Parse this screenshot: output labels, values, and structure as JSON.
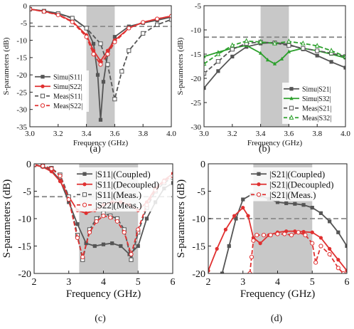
{
  "chart_data": [
    {
      "panel": "(a)",
      "type": "line",
      "xlabel": "Frequency (GHz)",
      "ylabel": "S-parameters (dB)",
      "xlim": [
        3.0,
        4.0
      ],
      "ylim": [
        -35,
        0
      ],
      "xticks": [
        3.0,
        3.2,
        3.4,
        3.6,
        3.8,
        4.0
      ],
      "xtick_labels": [
        "3.0",
        "3.2",
        "3.4",
        "3.6",
        "3.8",
        "4.0"
      ],
      "yticks": [
        0,
        -5,
        -10,
        -15,
        -20,
        -25,
        -30,
        -35
      ],
      "ytick_labels": [
        "0",
        "-5",
        "-10",
        "-15",
        "-20",
        "-25",
        "-30",
        "-35"
      ],
      "shaded_band": [
        3.4,
        3.6
      ],
      "ref_line": -6,
      "legend_position": "lower-left",
      "series": [
        {
          "name": "Simu|S11|",
          "color": "#555555",
          "style": "solid",
          "marker": "square",
          "x": [
            3.0,
            3.1,
            3.2,
            3.3,
            3.4,
            3.45,
            3.48,
            3.5,
            3.52,
            3.55,
            3.6,
            3.7,
            3.8,
            3.9,
            4.0
          ],
          "y": [
            -1.0,
            -1.5,
            -2.2,
            -3.5,
            -6.5,
            -11,
            -20,
            -33,
            -22,
            -14,
            -9,
            -6,
            -5,
            -4.2,
            -3.3
          ]
        },
        {
          "name": "Simu|S22|",
          "color": "#e03030",
          "style": "solid",
          "marker": "circle",
          "x": [
            3.0,
            3.1,
            3.2,
            3.3,
            3.4,
            3.45,
            3.5,
            3.55,
            3.6,
            3.7,
            3.8,
            3.9,
            4.0
          ],
          "y": [
            -1.0,
            -1.6,
            -2.6,
            -4.5,
            -8.5,
            -13,
            -16,
            -13,
            -10,
            -6.5,
            -4.8,
            -3.8,
            -3.0
          ]
        },
        {
          "name": "Meas|S11|",
          "color": "#555555",
          "style": "dashed",
          "marker": "open-square",
          "x": [
            3.0,
            3.1,
            3.2,
            3.3,
            3.4,
            3.5,
            3.55,
            3.6,
            3.65,
            3.7,
            3.8,
            3.9,
            4.0
          ],
          "y": [
            -1.0,
            -1.6,
            -2.3,
            -3.6,
            -6.5,
            -11,
            -17,
            -27,
            -19,
            -13,
            -8,
            -5.5,
            -4.0
          ]
        },
        {
          "name": "Meas|S22|",
          "color": "#e03030",
          "style": "dashed",
          "marker": "open-circle",
          "x": [
            3.0,
            3.1,
            3.2,
            3.3,
            3.4,
            3.45,
            3.5,
            3.55,
            3.6,
            3.7,
            3.8,
            3.9,
            4.0
          ],
          "y": [
            -1.0,
            -1.7,
            -2.7,
            -4.7,
            -9,
            -14,
            -17,
            -14,
            -10.5,
            -6.5,
            -4.8,
            -3.8,
            -3.0
          ]
        }
      ]
    },
    {
      "panel": "(b)",
      "type": "line",
      "xlabel": "Frequency (GHz)",
      "ylabel": "S-parameters (dB)",
      "xlim": [
        3.0,
        4.0
      ],
      "ylim": [
        -30,
        -5
      ],
      "xticks": [
        3.0,
        3.2,
        3.4,
        3.6,
        3.8,
        4.0
      ],
      "xtick_labels": [
        "3.0",
        "3.2",
        "3.4",
        "3.6",
        "3.8",
        "4.0"
      ],
      "yticks": [
        -5,
        -10,
        -15,
        -20,
        -25,
        -30
      ],
      "ytick_labels": [
        "-5",
        "-10",
        "-15",
        "-20",
        "-25",
        "-30"
      ],
      "shaded_band": [
        3.4,
        3.6
      ],
      "ref_line": -11.5,
      "legend_position": "lower-right",
      "series": [
        {
          "name": "Simu|S21|",
          "color": "#555555",
          "style": "solid",
          "marker": "square",
          "x": [
            3.0,
            3.1,
            3.2,
            3.3,
            3.4,
            3.5,
            3.6,
            3.7,
            3.8,
            3.9,
            4.0
          ],
          "y": [
            -22,
            -18.5,
            -15.5,
            -13.5,
            -12.8,
            -12.6,
            -13.0,
            -14.0,
            -15.3,
            -16.6,
            -17.8
          ]
        },
        {
          "name": "Simu|S32|",
          "color": "#2ca02c",
          "style": "solid",
          "marker": "triangle",
          "x": [
            3.0,
            3.1,
            3.2,
            3.3,
            3.4,
            3.45,
            3.5,
            3.55,
            3.6,
            3.7,
            3.8,
            3.9,
            4.0
          ],
          "y": [
            -15.5,
            -14.6,
            -13.8,
            -13.2,
            -14.8,
            -16.2,
            -17.0,
            -16.0,
            -14.5,
            -13.8,
            -14.3,
            -15.0,
            -15.8
          ]
        },
        {
          "name": "Meas|S21|",
          "color": "#555555",
          "style": "dashed",
          "marker": "open-square",
          "x": [
            3.0,
            3.1,
            3.2,
            3.3,
            3.4,
            3.5,
            3.6,
            3.7,
            3.8,
            3.9,
            4.0
          ],
          "y": [
            -19,
            -16.5,
            -14,
            -12.8,
            -12.5,
            -12.7,
            -13.2,
            -13.8,
            -14.3,
            -14.8,
            -15.5
          ]
        },
        {
          "name": "Meas|S32|",
          "color": "#2ca02c",
          "style": "dashed",
          "marker": "open-triangle",
          "x": [
            3.0,
            3.1,
            3.2,
            3.3,
            3.4,
            3.5,
            3.6,
            3.7,
            3.8,
            3.9,
            4.0
          ],
          "y": [
            -17,
            -15,
            -13.2,
            -12.3,
            -12.5,
            -12.8,
            -12.4,
            -12.8,
            -13.3,
            -14.3,
            -15.5
          ]
        }
      ]
    },
    {
      "panel": "(c)",
      "type": "line",
      "xlabel": "Frequency (GHz)",
      "ylabel": "S-parameters (dB)",
      "xlim": [
        2,
        6
      ],
      "ylim": [
        -20,
        0
      ],
      "xticks": [
        2,
        3,
        4,
        5,
        6
      ],
      "xtick_labels": [
        "2",
        "3",
        "4",
        "5",
        "6"
      ],
      "yticks": [
        0,
        -5,
        -10,
        -15,
        -20
      ],
      "ytick_labels": [
        "0",
        "-5",
        "-10",
        "-15",
        "-20"
      ],
      "shaded_band": [
        3.3,
        5.0
      ],
      "ref_line": -6,
      "legend_position": "top-right",
      "series": [
        {
          "name": "|S11|(Coupled)",
          "color": "#555555",
          "style": "solid",
          "marker": "square",
          "x": [
            2.0,
            2.25,
            2.5,
            2.75,
            3.0,
            3.25,
            3.5,
            3.75,
            4.0,
            4.25,
            4.5,
            4.75,
            5.0,
            5.25,
            5.5,
            5.75,
            6.0
          ],
          "y": [
            -0.2,
            -0.5,
            -1.2,
            -3.0,
            -7.0,
            -11.0,
            -14.5,
            -15.0,
            -14.7,
            -14.5,
            -15.0,
            -16.5,
            -15.0,
            -10.0,
            -7.0,
            -4.5,
            -3.5
          ]
        },
        {
          "name": "|S11|(Decoupled)",
          "color": "#e03030",
          "style": "solid",
          "marker": "circle",
          "x": [
            2.0,
            2.25,
            2.5,
            2.75,
            3.0,
            3.25,
            3.5,
            3.75,
            4.0,
            4.25,
            4.5,
            4.75,
            5.0,
            5.25,
            5.5,
            5.75,
            6.0
          ],
          "y": [
            -0.2,
            -0.6,
            -1.4,
            -3.2,
            -6.0,
            -8.5,
            -9.0,
            -8.5,
            -7.5,
            -7.0,
            -7.0,
            -7.5,
            -8.5,
            -7.0,
            -4.5,
            -3.0,
            -1.8
          ]
        },
        {
          "name": "|S11|(Meas.)",
          "color": "#555555",
          "style": "dashed",
          "marker": "open-square",
          "x": [
            2.0,
            2.25,
            2.5,
            2.75,
            3.0,
            3.25,
            3.4,
            3.6,
            3.8,
            4.0,
            4.2,
            4.4,
            4.6,
            4.8,
            5.0,
            5.25,
            5.5,
            5.75,
            6.0
          ],
          "y": [
            -0.2,
            -0.4,
            -0.8,
            -2.0,
            -6.0,
            -13.0,
            -17.5,
            -12.0,
            -10.0,
            -9.0,
            -9.5,
            -10.0,
            -12.0,
            -17.5,
            -12.5,
            -8.0,
            -5.0,
            -3.5,
            -2.5
          ]
        },
        {
          "name": "|S22|(Meas.)",
          "color": "#e03030",
          "style": "dashed",
          "marker": "open-circle",
          "x": [
            2.0,
            2.25,
            2.5,
            2.75,
            3.0,
            3.25,
            3.4,
            3.6,
            3.8,
            4.0,
            4.2,
            4.4,
            4.6,
            4.8,
            5.0,
            5.25,
            5.5,
            5.75,
            6.0
          ],
          "y": [
            -0.2,
            -0.4,
            -0.9,
            -2.2,
            -6.5,
            -13.5,
            -17.0,
            -12.5,
            -10.5,
            -9.5,
            -9.8,
            -10.5,
            -12.5,
            -16.5,
            -12.0,
            -7.5,
            -4.8,
            -3.2,
            -2.2
          ]
        }
      ]
    },
    {
      "panel": "(d)",
      "type": "line",
      "xlabel": "Frequency (GHz)",
      "ylabel": "S-parameters (dB)",
      "xlim": [
        2,
        6
      ],
      "ylim": [
        -20,
        0
      ],
      "xticks": [
        2,
        3,
        4,
        5,
        6
      ],
      "xtick_labels": [
        "2",
        "3",
        "4",
        "5",
        "6"
      ],
      "yticks": [
        0,
        -5,
        -10,
        -15,
        -20
      ],
      "ytick_labels": [
        "0",
        "-5",
        "-10",
        "-15",
        "-20"
      ],
      "shaded_band": [
        3.3,
        5.0
      ],
      "ref_line": -10,
      "legend_position": "top-right",
      "series": [
        {
          "name": "|S21|(Coupled)",
          "color": "#555555",
          "style": "solid",
          "marker": "square",
          "x": [
            2.4,
            2.6,
            2.8,
            3.0,
            3.25,
            3.5,
            3.75,
            4.0,
            4.25,
            4.5,
            4.75,
            5.0,
            5.25,
            5.5,
            5.75,
            6.0
          ],
          "y": [
            -20.0,
            -15.0,
            -10.0,
            -6.5,
            -5.6,
            -5.8,
            -6.4,
            -7.0,
            -7.2,
            -7.3,
            -7.5,
            -8.0,
            -9.0,
            -10.5,
            -12.5,
            -15.0
          ]
        },
        {
          "name": "|S21|(Decoupled)",
          "color": "#e03030",
          "style": "solid",
          "marker": "circle",
          "x": [
            2.0,
            2.25,
            2.5,
            2.75,
            3.0,
            3.15,
            3.3,
            3.5,
            3.75,
            4.0,
            4.25,
            4.5,
            4.75,
            5.0,
            5.25,
            5.5,
            5.75,
            6.0
          ],
          "y": [
            -19.5,
            -15.5,
            -12.0,
            -9.5,
            -8.0,
            -9.5,
            -13.5,
            -14.5,
            -13.0,
            -12.5,
            -12.3,
            -12.3,
            -12.4,
            -12.5,
            -13.5,
            -15.5,
            -17.5,
            -19.5
          ]
        },
        {
          "name": "|S21|(Meas.)",
          "color": "#e03030",
          "style": "dashed",
          "marker": "open-circle",
          "x": [
            3.2,
            3.25,
            3.3,
            3.4,
            3.6,
            3.8,
            4.0,
            4.2,
            4.4,
            4.6,
            4.8,
            5.0,
            5.1,
            5.25,
            5.5,
            5.75,
            5.9
          ],
          "y": [
            -20.0,
            -17.0,
            -14.0,
            -13.0,
            -13.0,
            -13.0,
            -12.8,
            -12.8,
            -13.0,
            -12.5,
            -13.0,
            -14.5,
            -18.0,
            -15.0,
            -16.5,
            -19.0,
            -20.0
          ]
        }
      ]
    }
  ],
  "captions": [
    "(a)",
    "(b)",
    "(c)",
    "(d)"
  ]
}
